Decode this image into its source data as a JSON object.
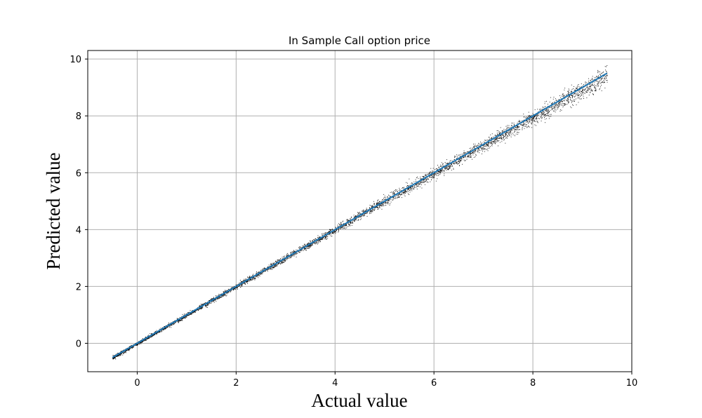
{
  "chart_data": {
    "type": "scatter",
    "title": "In Sample Call option price",
    "xlabel": "Actual value",
    "ylabel": "Predicted value",
    "xlim": [
      -1,
      10
    ],
    "ylim": [
      -1,
      10.3
    ],
    "xticks": [
      "0",
      "2",
      "4",
      "6",
      "8",
      "10"
    ],
    "xtick_values": [
      0,
      2,
      4,
      6,
      8,
      10
    ],
    "yticks": [
      "0",
      "2",
      "4",
      "6",
      "8",
      "10"
    ],
    "ytick_values": [
      0,
      2,
      4,
      6,
      8,
      10
    ],
    "grid": true,
    "scatter_color": "#000000",
    "line_color": "#1f77b4",
    "grid_color": "#b0b0b0",
    "series": [
      {
        "type": "scatter",
        "x_range": [
          -0.5,
          9.5
        ],
        "description_points": [
          {
            "x": -0.5,
            "y": -0.45
          },
          {
            "x": 0,
            "y": 0
          },
          {
            "x": 2,
            "y": 2
          },
          {
            "x": 4,
            "y": 4
          },
          {
            "x": 6,
            "y": 6
          },
          {
            "x": 8,
            "y": 8
          },
          {
            "x": 9.5,
            "y": 9.4
          }
        ],
        "spread_at_x": [
          {
            "x": 0,
            "spread": 0.05
          },
          {
            "x": 4,
            "spread": 0.1
          },
          {
            "x": 8,
            "spread": 0.2
          },
          {
            "x": 9.5,
            "spread": 0.3
          }
        ]
      },
      {
        "type": "line",
        "x": [
          -0.5,
          9.5
        ],
        "y": [
          -0.5,
          9.5
        ]
      }
    ]
  }
}
